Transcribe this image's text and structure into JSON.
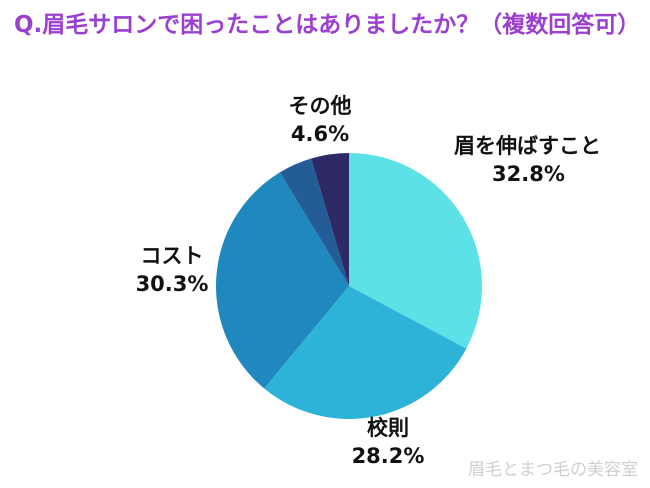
{
  "title": "Q.眉毛サロンで困ったことはありましたか？（複数回答可）",
  "watermark": "眉毛とまつ毛の美容室",
  "chart_data": {
    "type": "pie",
    "title": "Q.眉毛サロンで困ったことはありましたか？（複数回答可）",
    "unit": "%",
    "slices": [
      {
        "label": "眉を伸ばすこと",
        "value": 32.8,
        "value_label": "32.8%",
        "color": "#5ce1e6"
      },
      {
        "label": "校則",
        "value": 28.2,
        "value_label": "28.2%",
        "color": "#2eb3d8"
      },
      {
        "label": "コスト",
        "value": 30.3,
        "value_label": "30.3%",
        "color": "#1f88be"
      },
      {
        "label": "",
        "value": 4.1,
        "value_label": "",
        "color": "#245c96"
      },
      {
        "label": "その他",
        "value": 4.6,
        "value_label": "4.6%",
        "color": "#2e2a66"
      }
    ],
    "start_angle": "12 o'clock",
    "direction": "clockwise",
    "legend": "none"
  }
}
